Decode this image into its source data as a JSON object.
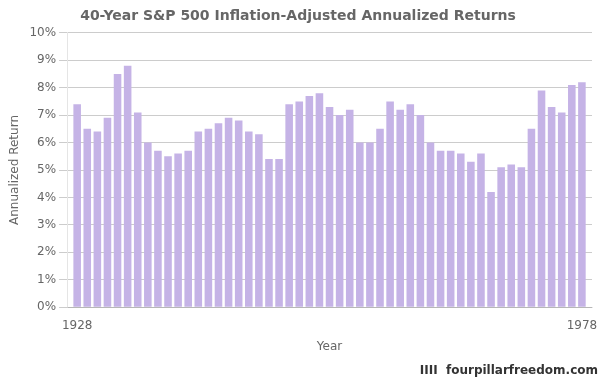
{
  "chart_data": {
    "type": "bar",
    "title": "40-Year S&P 500 Inflation-Adjusted Annualized Returns",
    "x_label": "Year",
    "y_label": "Annualized Return",
    "color": "#c5b3e6",
    "x": [
      1928,
      1929,
      1930,
      1931,
      1932,
      1933,
      1934,
      1935,
      1936,
      1937,
      1938,
      1939,
      1940,
      1941,
      1942,
      1943,
      1944,
      1945,
      1946,
      1947,
      1948,
      1949,
      1950,
      1951,
      1952,
      1953,
      1954,
      1955,
      1956,
      1957,
      1958,
      1959,
      1960,
      1961,
      1962,
      1963,
      1964,
      1965,
      1966,
      1967,
      1968,
      1969,
      1970,
      1971,
      1972,
      1973,
      1974,
      1975,
      1976,
      1977,
      1978
    ],
    "values": [
      0.074,
      0.065,
      0.064,
      0.069,
      0.085,
      0.088,
      0.071,
      0.06,
      0.057,
      0.055,
      0.056,
      0.057,
      0.064,
      0.065,
      0.067,
      0.069,
      0.068,
      0.064,
      0.063,
      0.054,
      0.054,
      0.074,
      0.075,
      0.077,
      0.078,
      0.073,
      0.07,
      0.072,
      0.06,
      0.06,
      0.065,
      0.075,
      0.072,
      0.074,
      0.07,
      0.06,
      0.057,
      0.057,
      0.056,
      0.053,
      0.056,
      0.042,
      0.051,
      0.052,
      0.051,
      0.065,
      0.079,
      0.073,
      0.071,
      0.081,
      0.082
    ],
    "xlim": [
      1927,
      1979
    ],
    "xticks": [
      1928,
      1978
    ],
    "ylim": [
      0,
      0.1
    ],
    "yticks": [
      {
        "value": 0.0,
        "label": "0%"
      },
      {
        "value": 0.01,
        "label": "1%"
      },
      {
        "value": 0.02,
        "label": "2%"
      },
      {
        "value": 0.03,
        "label": "3%"
      },
      {
        "value": 0.04,
        "label": "4%"
      },
      {
        "value": 0.05,
        "label": "5%"
      },
      {
        "value": 0.06,
        "label": "6%"
      },
      {
        "value": 0.07,
        "label": "7%"
      },
      {
        "value": 0.08,
        "label": "8%"
      },
      {
        "value": 0.09,
        "label": "9%"
      },
      {
        "value": 0.1,
        "label": "10%"
      }
    ],
    "grid": true,
    "annotations": [
      "IIII  fourpillarfreedom.com"
    ]
  }
}
